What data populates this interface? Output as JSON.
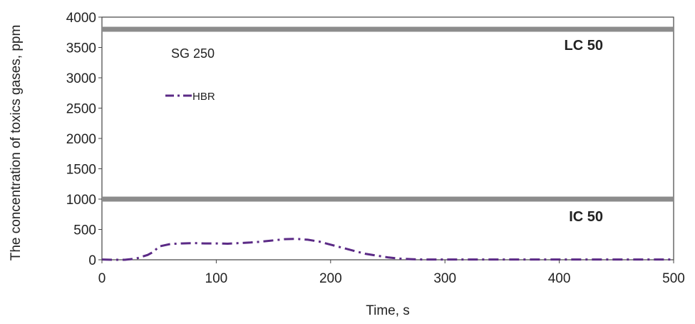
{
  "chart_data": {
    "type": "line",
    "xlabel": "Time, s",
    "ylabel": "The concentration of toxics gases, ppm",
    "xlim": [
      0,
      500
    ],
    "ylim": [
      0,
      4000
    ],
    "xticks": [
      0,
      100,
      200,
      300,
      400,
      500
    ],
    "yticks": [
      0,
      500,
      1000,
      1500,
      2000,
      2500,
      3000,
      3500,
      4000
    ],
    "grid": false,
    "annotations": {
      "sample": "SG 250",
      "lc50": "LC 50",
      "ic50": "IC  50"
    },
    "reference_lines": [
      {
        "label": "LC 50",
        "y": 3800,
        "color": "#8c8c8c"
      },
      {
        "label": "IC  50",
        "y": 1000,
        "color": "#8c8c8c"
      }
    ],
    "legend": {
      "position": "top-left"
    },
    "series": [
      {
        "name": "HBR",
        "color": "#5b2a86",
        "style": "dash-dot",
        "x": [
          0,
          10,
          20,
          30,
          40,
          45,
          50,
          60,
          70,
          80,
          90,
          100,
          110,
          120,
          130,
          140,
          150,
          160,
          170,
          180,
          190,
          200,
          210,
          220,
          230,
          240,
          250,
          260,
          270,
          280,
          290,
          300,
          320,
          340,
          360,
          380,
          400,
          420,
          440,
          460,
          480,
          500
        ],
        "y": [
          5,
          0,
          0,
          20,
          80,
          130,
          220,
          260,
          270,
          275,
          270,
          270,
          265,
          275,
          285,
          300,
          320,
          340,
          345,
          330,
          300,
          250,
          200,
          150,
          100,
          70,
          40,
          20,
          10,
          5,
          5,
          5,
          5,
          5,
          5,
          5,
          5,
          5,
          5,
          5,
          5,
          5
        ]
      }
    ]
  }
}
